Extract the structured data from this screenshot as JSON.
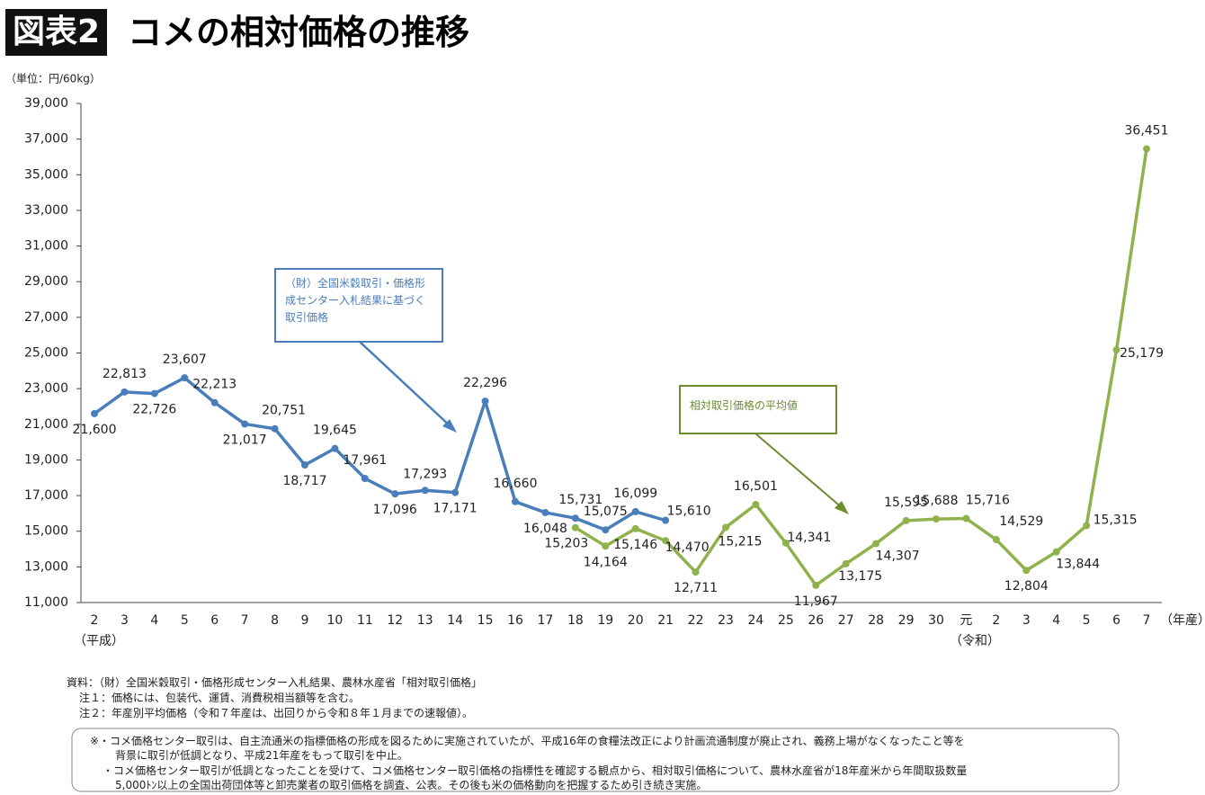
{
  "chart_data": {
    "type": "line",
    "title_badge": "図表2",
    "title": "コメの相対価格の推移",
    "unit_label": "（単位：円/60kg）",
    "era_labels": [
      "（平成）",
      "（令和）"
    ],
    "x_axis_label": "（年産）",
    "categories": [
      "2",
      "3",
      "4",
      "5",
      "6",
      "7",
      "8",
      "9",
      "10",
      "11",
      "12",
      "13",
      "14",
      "15",
      "16",
      "17",
      "18",
      "19",
      "20",
      "21",
      "22",
      "23",
      "24",
      "25",
      "26",
      "27",
      "28",
      "29",
      "30",
      "元",
      "2",
      "3",
      "4",
      "5",
      "6",
      "7"
    ],
    "ylim": [
      11000,
      39000
    ],
    "yticks": [
      {
        "value": 11000,
        "label": "11,000"
      },
      {
        "value": 13000,
        "label": "13,000"
      },
      {
        "value": 15000,
        "label": "15,000"
      },
      {
        "value": 17000,
        "label": "17,000"
      },
      {
        "value": 19000,
        "label": "19,000"
      },
      {
        "value": 21000,
        "label": "21,000"
      },
      {
        "value": 23000,
        "label": "23,000"
      },
      {
        "value": 25000,
        "label": "25,000"
      },
      {
        "value": 27000,
        "label": "27,000"
      },
      {
        "value": 29000,
        "label": "29,000"
      },
      {
        "value": 31000,
        "label": "31,000"
      },
      {
        "value": 33000,
        "label": "33,000"
      },
      {
        "value": 35000,
        "label": "35,000"
      },
      {
        "value": 37000,
        "label": "37,000"
      },
      {
        "value": 39000,
        "label": "39,000"
      }
    ],
    "series": [
      {
        "name": "（財）全国米穀取引・価格形成センター入札結果に基づく取引価格",
        "color": "#4a7ebb",
        "values": [
          21600,
          22813,
          22726,
          23607,
          22213,
          21017,
          20751,
          18717,
          19645,
          17961,
          17096,
          17293,
          17171,
          22296,
          16660,
          16048,
          15731,
          15075,
          16099,
          15610,
          null,
          null,
          null,
          null,
          null,
          null,
          null,
          null,
          null,
          null,
          null,
          null,
          null,
          null,
          null,
          null
        ],
        "value_labels": [
          "21,600",
          "22,813",
          "22,726",
          "23,607",
          "22,213",
          "21,017",
          "20,751",
          "18,717",
          "19,645",
          "17,961",
          "17,096",
          "17,293",
          "17,171",
          "22,296",
          "16,660",
          "16,048",
          "15,731",
          "15,075",
          "16,099",
          "15,610",
          null,
          null,
          null,
          null,
          null,
          null,
          null,
          null,
          null,
          null,
          null,
          null,
          null,
          null,
          null,
          null
        ]
      },
      {
        "name": "相対取引価格の平均値",
        "color": "#8fb24c",
        "values": [
          null,
          null,
          null,
          null,
          null,
          null,
          null,
          null,
          null,
          null,
          null,
          null,
          null,
          null,
          null,
          null,
          15203,
          14164,
          15146,
          14470,
          12711,
          15215,
          16501,
          14341,
          11967,
          13175,
          14307,
          15595,
          15688,
          15716,
          14529,
          12804,
          13844,
          15315,
          25179,
          36451
        ],
        "value_labels": [
          null,
          null,
          null,
          null,
          null,
          null,
          null,
          null,
          null,
          null,
          null,
          null,
          null,
          null,
          null,
          null,
          "15,203",
          "14,164",
          "15,146",
          "14,470",
          "12,711",
          "15,215",
          "16,501",
          "14,341",
          "11,967",
          "13,175",
          "14,307",
          "15,595",
          "15,688",
          "15,716",
          "14,529",
          "12,804",
          "13,844",
          "15,315",
          "25,179",
          "36,451"
        ]
      }
    ],
    "notes": [
      "資料：（財）全国米穀取引・価格形成センター入札結果、農林水産省「相対取引価格」",
      "注１：価格には、包装代、運賃、消費税相当額等を含む。",
      "注２：年産別平均価格（令和７年産は、出回りから令和８年１月までの速報値）。"
    ],
    "box_notes": [
      "※・コメ価格センター取引は、自主流通米の指標価格の形成を図るために実施されていたが、平成16年の食糧法改正により計画流通制度が廃止され、義務上場がなくなったこと等を",
      "背景に取引が低調となり、平成21年産をもって取引を中止。",
      "・コメ価格センター取引が低調となったことを受けて、コメ価格センター取引価格の指標性を確認する観点から、相対取引価格について、農林水産省が18年産米から年間取扱数量",
      "5,000ﾄﾝ以上の全国出荷団体等と卸売業者の取引価格を調査、公表。その後も米の価格動向を把握するため引き続き実施。"
    ]
  }
}
